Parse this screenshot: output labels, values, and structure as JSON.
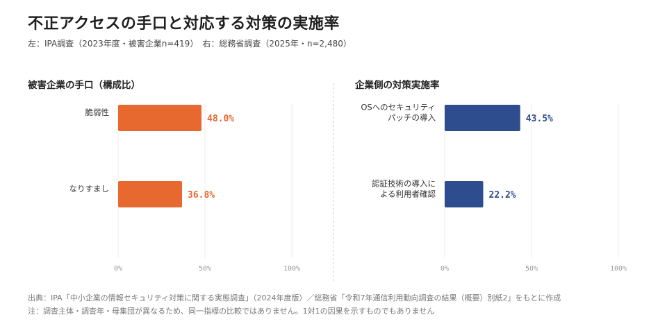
{
  "title": "不正アクセスの手口と対応する対策の実施率",
  "subtitle": "左：IPA調査（2023年度・被害企業n=419）　右：総務省調査（2025年・n=2,480）",
  "chart_data": [
    {
      "type": "bar",
      "orientation": "horizontal",
      "title": "被害企業の手口（構成比）",
      "categories": [
        [
          "脆弱性"
        ],
        [
          "なりすまし"
        ]
      ],
      "values": [
        48.0,
        36.8
      ],
      "value_labels": [
        "48.0%",
        "36.8%"
      ],
      "xlim": [
        0,
        100
      ],
      "ticks": [
        0,
        50,
        100
      ],
      "tick_labels": [
        "0%",
        "50%",
        "100%"
      ],
      "color": "#E8692F",
      "grid": true
    },
    {
      "type": "bar",
      "orientation": "horizontal",
      "title": "企業側の対策実施率",
      "categories": [
        [
          "OSへのセキュリティ",
          "パッチの導入"
        ],
        [
          "認証技術の導入に",
          "よる利用者確認"
        ]
      ],
      "values": [
        43.5,
        22.2
      ],
      "value_labels": [
        "43.5%",
        "22.2%"
      ],
      "xlim": [
        0,
        100
      ],
      "ticks": [
        0,
        50,
        100
      ],
      "tick_labels": [
        "0%",
        "50%",
        "100%"
      ],
      "color": "#2D4D8E",
      "grid": true
    }
  ],
  "footer": {
    "source": "出典：IPA「中小企業の情報セキュリティ対策に関する実態調査」（2024年度版）／総務省「令和7年通信利用動向調査の結果（概要）別紙2」をもとに作成",
    "note": "注：調査主体・調査年・母集団が異なるため、同一指標の比較ではありません。1対1の因果を示すものでもありません"
  }
}
